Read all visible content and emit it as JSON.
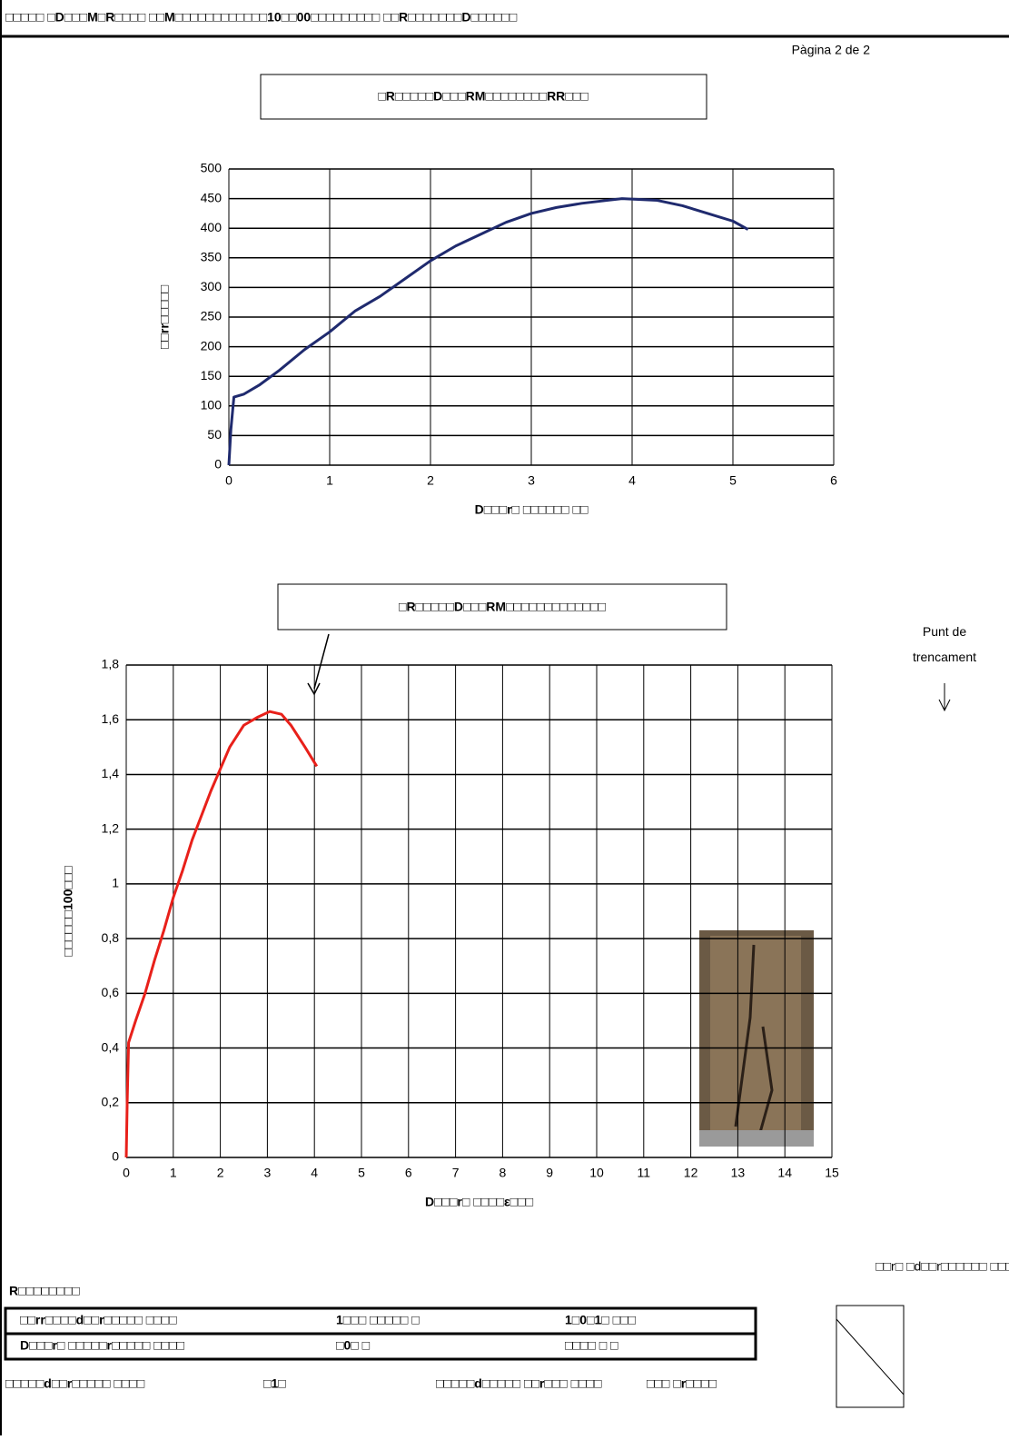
{
  "header": {
    "title": "□□□□□ □D□□□M□R□□□□ □□M□□□□□□□□□□□□10□□00□□□□□□□□□ □□R□□□□□□□D□□□□□□",
    "page": "Pàgina 2 de 2"
  },
  "chart_data": [
    {
      "type": "line",
      "title": "□R□□□□□D□□□RM□□□□□□□□RR□□□",
      "x_label": "D□□□r□ □□□□□□ □□",
      "y_label": "□□rr□□□□□",
      "x": [
        0,
        0.02,
        0.05,
        0.15,
        0.3,
        0.5,
        0.75,
        1,
        1.25,
        1.5,
        1.75,
        2,
        2.25,
        2.5,
        2.75,
        3,
        3.25,
        3.5,
        3.75,
        3.9,
        4.25,
        4.5,
        4.75,
        5,
        5.15
      ],
      "series": [
        {
          "color": "#1f2a6e",
          "values": [
            0,
            60,
            115,
            120,
            135,
            160,
            195,
            225,
            260,
            285,
            315,
            345,
            370,
            390,
            410,
            425,
            435,
            442,
            447,
            450,
            447,
            438,
            425,
            412,
            398
          ]
        }
      ],
      "xlim": [
        0,
        6
      ],
      "xticks": [
        0,
        1,
        2,
        3,
        4,
        5,
        6
      ],
      "ylim": [
        0,
        500
      ],
      "yticks": [
        0,
        50,
        100,
        150,
        200,
        250,
        300,
        350,
        400,
        450,
        500
      ],
      "grid": true
    },
    {
      "type": "line",
      "title": "□R□□□□□D□□□RM□□□□□□□□□□□□□",
      "x_label": "D□□□r□ □□□□ε□□□",
      "y_label": "□□□□□□100□□□",
      "x": [
        0,
        0.02,
        0.05,
        0.2,
        0.4,
        0.6,
        0.8,
        1,
        1.2,
        1.4,
        1.6,
        1.8,
        2,
        2.2,
        2.5,
        2.8,
        3.05,
        3.3,
        3.5,
        3.8,
        4.05
      ],
      "series": [
        {
          "color": "#e8201a",
          "values": [
            0,
            0.2,
            0.42,
            0.5,
            0.6,
            0.72,
            0.83,
            0.95,
            1.05,
            1.16,
            1.25,
            1.34,
            1.42,
            1.5,
            1.58,
            1.61,
            1.63,
            1.62,
            1.58,
            1.5,
            1.43
          ]
        }
      ],
      "xlim": [
        0,
        15
      ],
      "xticks": [
        0,
        1,
        2,
        3,
        4,
        5,
        6,
        7,
        8,
        9,
        10,
        11,
        12,
        13,
        14,
        15
      ],
      "ylim": [
        0,
        1.8
      ],
      "yticks": [
        0,
        {
          "value": 0.2,
          "label": "0,2"
        },
        {
          "value": 0.4,
          "label": "0,4"
        },
        {
          "value": 0.6,
          "label": "0,6"
        },
        {
          "value": 0.8,
          "label": "0,8"
        },
        1,
        {
          "value": 1.2,
          "label": "1,2"
        },
        {
          "value": 1.4,
          "label": "1,4"
        },
        {
          "value": 1.6,
          "label": "1,6"
        },
        {
          "value": 1.8,
          "label": "1,8"
        }
      ],
      "grid": true,
      "annotation": "Punt de trencament"
    }
  ],
  "results": {
    "title": "R□□□□□□□□",
    "rows": [
      [
        "□□rr□□□□d□□r□□□□□ □□□□",
        "1□□□ □□□□□ □",
        "1□0□1□ □□□"
      ],
      [
        "D□□□r□ □□□□□r□□□□□ □□□□",
        "□0□ □",
        "□□□□ □ □"
      ]
    ],
    "footer": [
      "□□□□□d□□r□□□□□ □□□□",
      "□1□",
      "□□□□□d□□□□□ □□r□□□ □□□□",
      "□□□ □r□□□□"
    ],
    "diagram_label": "□□r□ □d□□r□□□□□□ □□□"
  }
}
